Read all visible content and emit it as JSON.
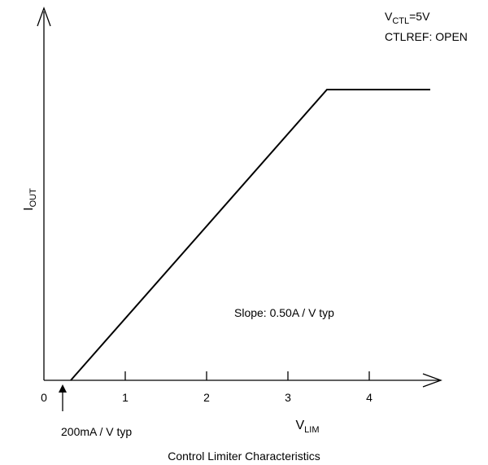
{
  "chart_data": {
    "type": "line",
    "title": "Control Limiter Characteristics",
    "xlabel": {
      "main": "V",
      "sub": "LIM"
    },
    "ylabel": {
      "main": "I",
      "sub": "OUT"
    },
    "x_ticks": [
      0,
      1,
      2,
      3,
      4
    ],
    "xlim": [
      0,
      4.9
    ],
    "ylim": [
      0,
      1.5
    ],
    "series": [
      {
        "x": [
          0.33,
          3.48,
          4.75
        ],
        "y": [
          0,
          1.42,
          1.42
        ]
      }
    ],
    "annotations": {
      "condition": {
        "main": "V",
        "sub": "CTL",
        "rest": "=5V"
      },
      "condition2": "CTLREF: OPEN",
      "slope": "Slope: 0.50A / V typ",
      "offset": "200mA / V typ"
    },
    "grid": false
  }
}
